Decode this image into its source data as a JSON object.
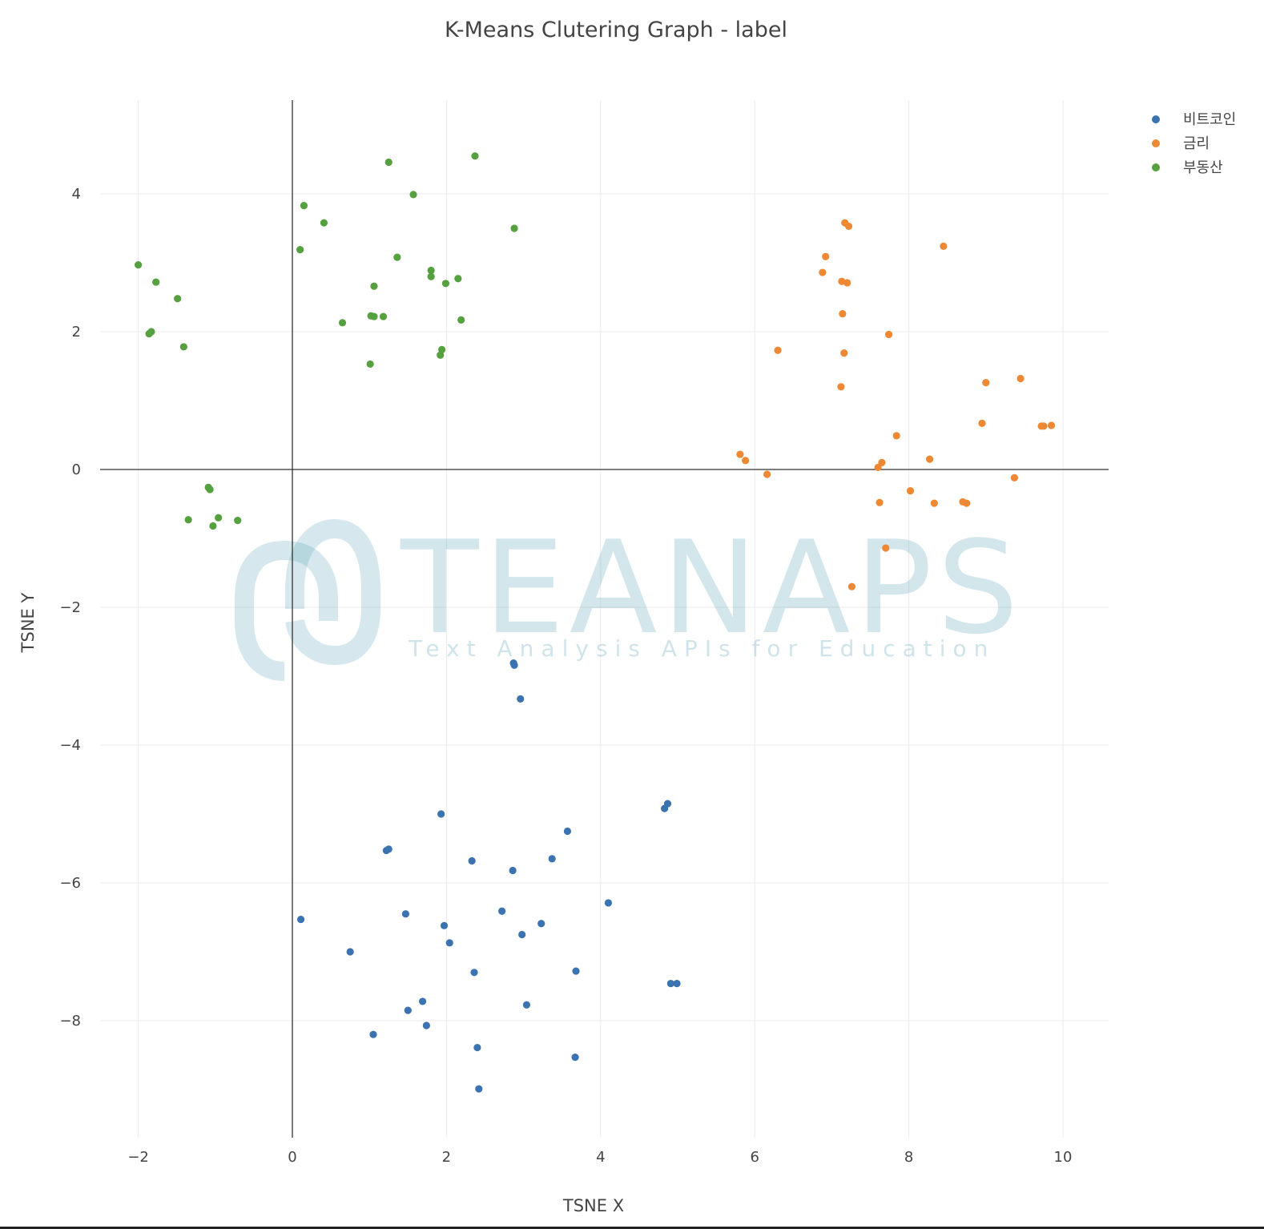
{
  "chart_data": {
    "type": "scatter",
    "title": "K-Means Clutering Graph - label",
    "xlabel": "TSNE X",
    "ylabel": "TSNE Y",
    "xlim": [
      -2.5,
      10.6
    ],
    "ylim": [
      -9.7,
      5.35
    ],
    "xticks": [
      -2,
      0,
      2,
      4,
      6,
      8,
      10
    ],
    "yticks": [
      -8,
      -6,
      -4,
      -2,
      0,
      2,
      4
    ],
    "grid": true,
    "legend_position": "top-right",
    "series": [
      {
        "name": "비트코인",
        "color": "#3a73b0",
        "points": [
          [
            2.87,
            -2.81
          ],
          [
            2.88,
            -2.84
          ],
          [
            2.96,
            -3.33
          ],
          [
            1.93,
            -5.0
          ],
          [
            4.87,
            -4.85
          ],
          [
            4.83,
            -4.92
          ],
          [
            3.57,
            -5.25
          ],
          [
            1.22,
            -5.53
          ],
          [
            1.25,
            -5.51
          ],
          [
            2.33,
            -5.68
          ],
          [
            3.37,
            -5.65
          ],
          [
            2.86,
            -5.82
          ],
          [
            0.11,
            -6.53
          ],
          [
            1.47,
            -6.45
          ],
          [
            2.72,
            -6.41
          ],
          [
            4.1,
            -6.29
          ],
          [
            1.97,
            -6.62
          ],
          [
            3.23,
            -6.59
          ],
          [
            2.98,
            -6.75
          ],
          [
            2.04,
            -6.87
          ],
          [
            0.75,
            -7.0
          ],
          [
            2.36,
            -7.3
          ],
          [
            3.68,
            -7.28
          ],
          [
            4.91,
            -7.46
          ],
          [
            4.99,
            -7.46
          ],
          [
            1.69,
            -7.72
          ],
          [
            3.04,
            -7.77
          ],
          [
            1.5,
            -7.85
          ],
          [
            1.74,
            -8.07
          ],
          [
            1.05,
            -8.2
          ],
          [
            2.4,
            -8.39
          ],
          [
            3.67,
            -8.53
          ],
          [
            2.42,
            -8.99
          ]
        ]
      },
      {
        "name": "금리",
        "color": "#ee8833",
        "points": [
          [
            7.17,
            3.58
          ],
          [
            7.22,
            3.53
          ],
          [
            8.45,
            3.24
          ],
          [
            6.92,
            3.09
          ],
          [
            6.88,
            2.86
          ],
          [
            7.13,
            2.73
          ],
          [
            7.2,
            2.71
          ],
          [
            7.14,
            2.26
          ],
          [
            7.74,
            1.96
          ],
          [
            6.3,
            1.73
          ],
          [
            7.16,
            1.69
          ],
          [
            7.12,
            1.2
          ],
          [
            9.45,
            1.32
          ],
          [
            9.0,
            1.26
          ],
          [
            8.95,
            0.67
          ],
          [
            9.72,
            0.63
          ],
          [
            9.75,
            0.63
          ],
          [
            9.85,
            0.64
          ],
          [
            7.84,
            0.49
          ],
          [
            5.81,
            0.22
          ],
          [
            5.88,
            0.13
          ],
          [
            8.27,
            0.15
          ],
          [
            7.65,
            0.1
          ],
          [
            7.6,
            0.03
          ],
          [
            6.16,
            -0.07
          ],
          [
            9.37,
            -0.12
          ],
          [
            8.02,
            -0.31
          ],
          [
            7.62,
            -0.48
          ],
          [
            8.33,
            -0.49
          ],
          [
            8.7,
            -0.47
          ],
          [
            8.75,
            -0.49
          ],
          [
            7.7,
            -1.14
          ],
          [
            7.26,
            -1.7
          ]
        ]
      },
      {
        "name": "부동산",
        "color": "#55a03f",
        "points": [
          [
            2.37,
            4.55
          ],
          [
            1.25,
            4.46
          ],
          [
            1.57,
            3.99
          ],
          [
            0.15,
            3.83
          ],
          [
            0.41,
            3.58
          ],
          [
            2.88,
            3.5
          ],
          [
            0.1,
            3.19
          ],
          [
            1.36,
            3.08
          ],
          [
            1.8,
            2.89
          ],
          [
            1.8,
            2.8
          ],
          [
            2.15,
            2.77
          ],
          [
            1.99,
            2.7
          ],
          [
            1.06,
            2.66
          ],
          [
            -2.0,
            2.97
          ],
          [
            -1.77,
            2.72
          ],
          [
            -1.49,
            2.48
          ],
          [
            -1.83,
            2.0
          ],
          [
            -1.86,
            1.97
          ],
          [
            -1.41,
            1.78
          ],
          [
            1.02,
            2.23
          ],
          [
            1.06,
            2.22
          ],
          [
            1.18,
            2.22
          ],
          [
            0.65,
            2.13
          ],
          [
            2.19,
            2.17
          ],
          [
            1.94,
            1.74
          ],
          [
            1.92,
            1.66
          ],
          [
            1.01,
            1.53
          ],
          [
            -1.09,
            -0.26
          ],
          [
            -1.07,
            -0.29
          ],
          [
            -1.35,
            -0.73
          ],
          [
            -0.96,
            -0.7
          ],
          [
            -0.71,
            -0.74
          ],
          [
            -1.03,
            -0.82
          ]
        ]
      }
    ]
  },
  "watermark": {
    "brand": "TEANAPS",
    "tagline": "Text Analysis APIs for Education"
  }
}
